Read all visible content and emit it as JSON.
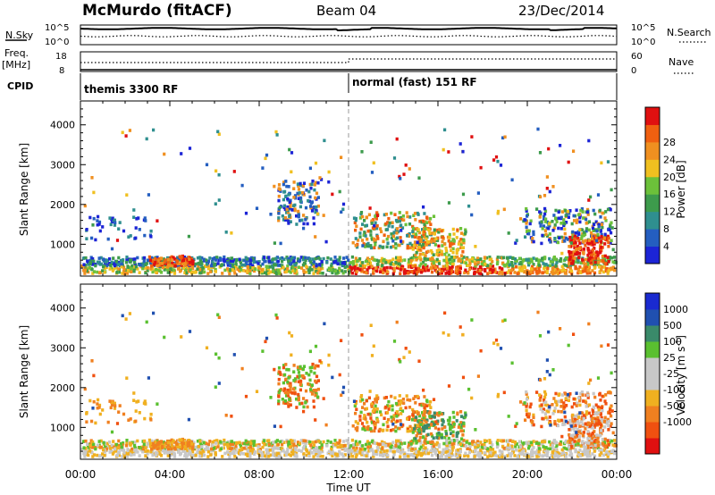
{
  "header": {
    "station": "McMurdo (fitACF)",
    "beam": "Beam 04",
    "date": "23/Dec/2014"
  },
  "summary": {
    "nsky_label": "N.Sky",
    "nsearch_label": "N.Search",
    "noise_ticks": [
      "10^5",
      "10^0"
    ],
    "freq_label_1": "Freq.",
    "freq_label_2": "[MHz]",
    "freq_ticks": [
      "18",
      "8"
    ],
    "nave_ticks": [
      "60",
      "0"
    ],
    "nave_label": "Nave",
    "cpid_label": "CPID",
    "cpid_segments": [
      {
        "label": "themis 3300 RF",
        "start_h": 0,
        "end_h": 12
      },
      {
        "label": "normal (fast) 151 RF",
        "start_h": 12,
        "end_h": 24
      }
    ]
  },
  "colors": {
    "power_scale": [
      "#1c24d6",
      "#245ec0",
      "#2f8f8f",
      "#3d9b4c",
      "#6cc13a",
      "#f0c020",
      "#f09020",
      "#f06010",
      "#e01010"
    ],
    "velocity_scale": [
      "#e01010",
      "#f05010",
      "#f08020",
      "#f0b020",
      "#c8c8c8",
      "#c8c8c8",
      "#5ac030",
      "#3a8a6a",
      "#2050b0",
      "#1a2ad0"
    ]
  },
  "chart_data": [
    {
      "type": "heatmap",
      "panel": "power",
      "ylabel": "Slant Range [km]",
      "yticks": [
        1000,
        2000,
        3000,
        4000
      ],
      "ylim": [
        200,
        4600
      ],
      "xlim": [
        0,
        24
      ],
      "xticks": [
        "00:00",
        "04:00",
        "08:00",
        "12:00",
        "16:00",
        "20:00",
        "00:00"
      ],
      "colorbar": {
        "label": "Power [dB]",
        "ticks": [
          "4",
          "8",
          "12",
          "16",
          "20",
          "24",
          "28"
        ],
        "range": [
          0,
          30
        ]
      }
    },
    {
      "type": "heatmap",
      "panel": "velocity",
      "ylabel": "Slant Range [km]",
      "yticks": [
        1000,
        2000,
        3000,
        4000
      ],
      "ylim": [
        200,
        4600
      ],
      "xlim": [
        0,
        24
      ],
      "xticks": [
        "00:00",
        "04:00",
        "08:00",
        "12:00",
        "16:00",
        "20:00",
        "00:00"
      ],
      "xlabel": "Time UT",
      "colorbar": {
        "label": "Velocity [m s^-1]",
        "ticks": [
          "1000",
          "500",
          "100",
          "25",
          "-25",
          "-100",
          "-500",
          "-1000"
        ]
      }
    }
  ]
}
